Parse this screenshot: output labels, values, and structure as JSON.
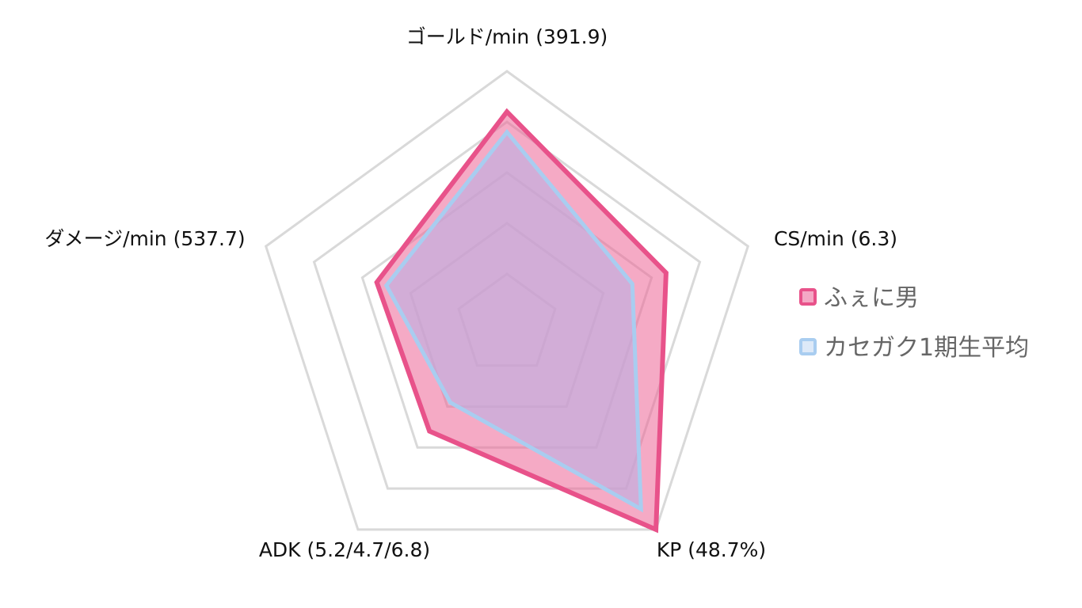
{
  "chart_data": {
    "type": "radar",
    "axes": [
      "ゴールド/min (391.9)",
      "CS/min (6.3)",
      "KP (48.7%)",
      "ADK (5.2/4.7/6.8)",
      "ダメージ/min (537.7)"
    ],
    "scale": {
      "min": 0,
      "max": 5,
      "rings": 5
    },
    "grid": true,
    "legend_position": "right",
    "series": [
      {
        "name": "ふぇに男",
        "values": [
          4.2,
          3.3,
          5.0,
          2.6,
          2.7
        ],
        "stroke": "#e8528a",
        "fill": "rgba(236, 100, 150, 0.55)"
      },
      {
        "name": "カセガク1期生平均",
        "values": [
          3.8,
          2.6,
          4.5,
          1.9,
          2.5
        ],
        "stroke": "#a9cdf0",
        "fill": "rgba(190, 175, 225, 0.65)"
      }
    ],
    "colors": {
      "grid": "#d9d9d9",
      "label": "#111111",
      "legend_text": "#666666"
    }
  }
}
